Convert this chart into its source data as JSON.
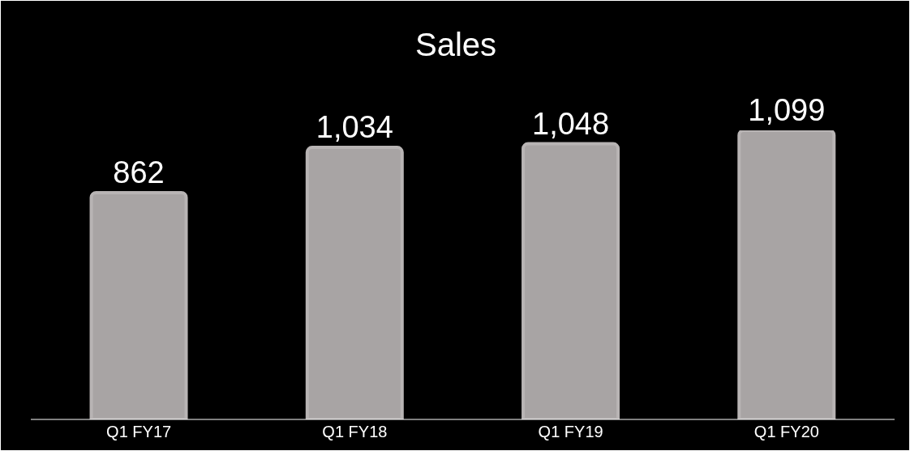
{
  "chart_data": {
    "type": "bar",
    "title": "Sales",
    "categories": [
      "Q1 FY17",
      "Q1 FY18",
      "Q1 FY19",
      "Q1 FY20"
    ],
    "values": [
      862,
      1034,
      1048,
      1099
    ],
    "value_labels": [
      "862",
      "1,034",
      "1,048",
      "1,099"
    ],
    "color": "#a8a4a4",
    "grid": false,
    "legend": false
  }
}
